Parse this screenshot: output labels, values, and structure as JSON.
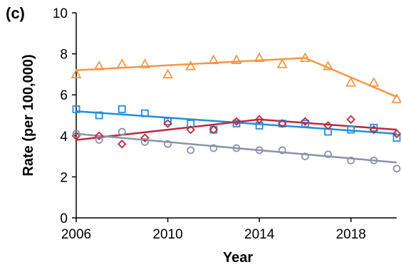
{
  "panel_label": "(c)",
  "colors": {
    "orange": "#F79646",
    "blue": "#1F8FDB",
    "red": "#C0283A",
    "gray": "#8C93A8",
    "axis": "#000000"
  },
  "chart_data": {
    "type": "scatter",
    "title": "",
    "xlabel": "Year",
    "ylabel": "Rate (per 100,000)",
    "xlim": [
      2006,
      2020
    ],
    "ylim": [
      0,
      10
    ],
    "xticks": [
      2006,
      2010,
      2014,
      2018
    ],
    "yticks": [
      0,
      2,
      4,
      6,
      8,
      10
    ],
    "grid": false,
    "legend": "none",
    "series": [
      {
        "marker": "triangle",
        "color": "#F79646",
        "x": [
          2006,
          2007,
          2008,
          2009,
          2010,
          2011,
          2012,
          2013,
          2014,
          2015,
          2016,
          2017,
          2018,
          2019,
          2020
        ],
        "values": [
          7.0,
          7.4,
          7.5,
          7.5,
          7.0,
          7.4,
          7.7,
          7.7,
          7.8,
          7.5,
          7.8,
          7.4,
          6.6,
          6.6,
          5.8
        ],
        "trend": {
          "x": [
            2006,
            2016,
            2020
          ],
          "y": [
            7.2,
            7.8,
            5.9
          ]
        }
      },
      {
        "marker": "square",
        "color": "#1F8FDB",
        "x": [
          2006,
          2007,
          2008,
          2009,
          2010,
          2011,
          2012,
          2013,
          2014,
          2015,
          2016,
          2017,
          2018,
          2019,
          2020
        ],
        "values": [
          5.3,
          5.0,
          5.3,
          5.1,
          4.7,
          4.6,
          4.3,
          4.6,
          4.5,
          4.6,
          4.6,
          4.2,
          4.3,
          4.4,
          3.9
        ],
        "trend": {
          "x": [
            2006,
            2020
          ],
          "y": [
            5.2,
            4.1
          ]
        }
      },
      {
        "marker": "diamond",
        "color": "#C0283A",
        "x": [
          2006,
          2007,
          2008,
          2009,
          2010,
          2011,
          2012,
          2013,
          2014,
          2015,
          2016,
          2017,
          2018,
          2019,
          2020
        ],
        "values": [
          4.0,
          4.0,
          3.6,
          3.9,
          4.6,
          4.3,
          4.3,
          4.7,
          4.8,
          4.6,
          4.7,
          4.5,
          4.8,
          4.3,
          4.1
        ],
        "trend": {
          "x": [
            2006,
            2014,
            2020
          ],
          "y": [
            3.8,
            4.8,
            4.3
          ]
        }
      },
      {
        "marker": "circle",
        "color": "#8C93A8",
        "x": [
          2006,
          2007,
          2008,
          2009,
          2010,
          2011,
          2012,
          2013,
          2014,
          2015,
          2016,
          2017,
          2018,
          2019,
          2020
        ],
        "values": [
          4.1,
          3.8,
          4.2,
          3.7,
          3.6,
          3.3,
          3.4,
          3.4,
          3.3,
          3.3,
          3.0,
          3.1,
          2.8,
          2.8,
          2.4
        ],
        "trend": {
          "x": [
            2006,
            2020
          ],
          "y": [
            4.1,
            2.7
          ]
        }
      }
    ]
  }
}
